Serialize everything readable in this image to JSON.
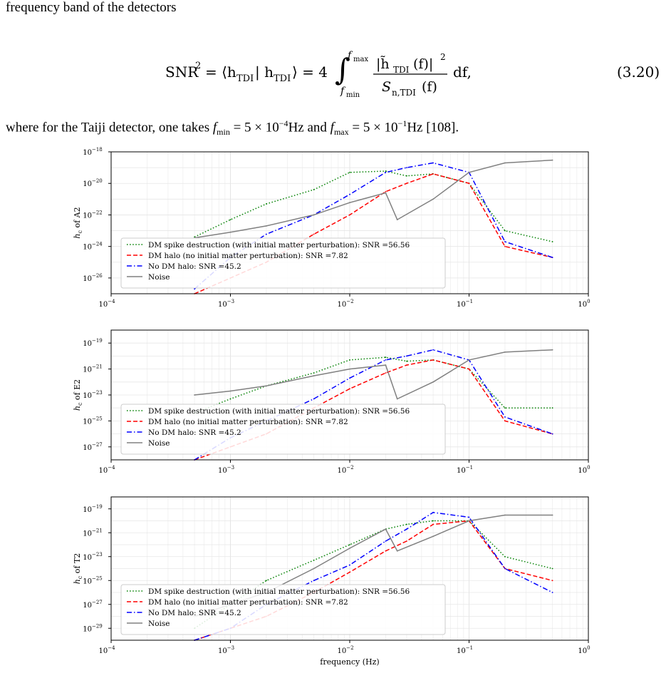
{
  "paper": {
    "intro_text": "frequency band of the detectors",
    "equation": {
      "lhs": "SNR",
      "lhs_sup": "2",
      "inner": "= ⟨h",
      "inner_sub": "TDI",
      "mid": " | h",
      "mid_sub": "TDI",
      "close": "⟩ = 4",
      "upper_limit": "f",
      "upper_limit_sub": "max",
      "lower_limit": "f",
      "lower_limit_sub": "min",
      "numerator": "|h̃",
      "numerator_sub": "TDI",
      "numerator_tail": "(f)|",
      "numerator_sup": "2",
      "denominator": "S",
      "denominator_sub": "n,TDI",
      "denominator_tail": "(f)",
      "differential": "df,",
      "number": "(3.20)"
    },
    "where_text": {
      "a": "where for the Taiji detector, one takes ",
      "fmin": "f",
      "fmin_sub": "min",
      "b": " = 5 × 10",
      "b_sup": "−4",
      "c": "Hz and ",
      "fmax": "f",
      "fmax_sub": "max",
      "d": " = 5 × 10",
      "d_sup": "−1",
      "e": "Hz [108]."
    }
  },
  "chart_data": [
    {
      "type": "line",
      "title": "",
      "xlabel": "",
      "ylabel": "h_c of A2",
      "ylabel_main": "h",
      "ylabel_sub": "c",
      "ylabel_tail": " of A2",
      "xscale": "log",
      "yscale": "log",
      "xlim": [
        0.0001,
        1
      ],
      "ylim": [
        1e-27,
        1e-18
      ],
      "x_ticks": [
        "10^-4",
        "10^-3",
        "10^-2",
        "10^-1",
        "10^0"
      ],
      "y_ticks": [
        "10^-26",
        "10^-24",
        "10^-22",
        "10^-20",
        "10^-18"
      ],
      "grid": true,
      "legend_position": "lower-left",
      "legend": [
        "DM spike destruction (with initial matter perturbation): SNR =56.56",
        "DM halo (no initial matter perturbation): SNR =7.82",
        "No DM halo: SNR =45.2",
        "Noise"
      ],
      "series": [
        {
          "name": "DM spike destruction (with initial matter perturbation): SNR =56.56",
          "color": "#008000",
          "style": "dotted",
          "x": [
            0.0005,
            0.001,
            0.002,
            0.005,
            0.01,
            0.02,
            0.03,
            0.05,
            0.1,
            0.2,
            0.5
          ],
          "y": [
            4e-24,
            5e-23,
            5e-22,
            4e-21,
            5e-20,
            6e-20,
            3e-20,
            4e-20,
            1e-20,
            1e-23,
            2e-24
          ]
        },
        {
          "name": "DM halo (no initial matter perturbation): SNR =7.82",
          "color": "#ff0000",
          "style": "dashed",
          "x": [
            0.0005,
            0.001,
            0.002,
            0.005,
            0.01,
            0.02,
            0.03,
            0.05,
            0.1,
            0.2,
            0.5
          ],
          "y": [
            1e-27,
            1e-26,
            1e-25,
            6e-24,
            1e-22,
            3e-21,
            1e-20,
            4e-20,
            1e-20,
            1e-24,
            2e-25
          ]
        },
        {
          "name": "No DM halo: SNR =45.2",
          "color": "#0000ff",
          "style": "dashdot",
          "x": [
            0.0005,
            0.001,
            0.002,
            0.005,
            0.01,
            0.02,
            0.03,
            0.05,
            0.1,
            0.2,
            0.5
          ],
          "y": [
            2e-27,
            2e-25,
            6e-24,
            1e-22,
            2e-21,
            5e-20,
            1e-19,
            2e-19,
            5e-20,
            2e-24,
            2e-25
          ]
        },
        {
          "name": "Noise",
          "color": "#808080",
          "style": "solid",
          "x": [
            0.0005,
            0.001,
            0.002,
            0.005,
            0.01,
            0.02,
            0.025,
            0.05,
            0.1,
            0.2,
            0.5
          ],
          "y": [
            3.5e-24,
            8e-24,
            2e-23,
            1e-22,
            6e-22,
            2.5e-21,
            5e-23,
            1e-21,
            5e-20,
            2e-19,
            3e-19
          ]
        }
      ]
    },
    {
      "type": "line",
      "title": "",
      "xlabel": "",
      "ylabel": "h_c of E2",
      "ylabel_main": "h",
      "ylabel_sub": "c",
      "ylabel_tail": " of E2",
      "xscale": "log",
      "yscale": "log",
      "xlim": [
        0.0001,
        1
      ],
      "ylim": [
        1e-28,
        1e-18
      ],
      "x_ticks": [
        "10^-4",
        "10^-3",
        "10^-2",
        "10^-1",
        "10^0"
      ],
      "y_ticks": [
        "10^-27",
        "10^-25",
        "10^-23",
        "10^-21",
        "10^-19"
      ],
      "grid": true,
      "legend_position": "lower-left",
      "legend": [
        "DM spike destruction (with initial matter perturbation): SNR =56.56",
        "DM halo (no initial matter perturbation): SNR =7.82",
        "No DM halo: SNR =45.2",
        "Noise"
      ],
      "series": [
        {
          "name": "DM spike destruction (with initial matter perturbation): SNR =56.56",
          "color": "#008000",
          "style": "dotted",
          "x": [
            0.0005,
            0.001,
            0.002,
            0.005,
            0.01,
            0.02,
            0.03,
            0.05,
            0.1,
            0.2,
            0.5
          ],
          "y": [
            4e-25,
            5e-24,
            5e-23,
            5e-22,
            5e-21,
            8e-21,
            4e-21,
            5e-21,
            1e-21,
            1e-24,
            1e-24
          ]
        },
        {
          "name": "DM halo (no initial matter perturbation): SNR =7.82",
          "color": "#ff0000",
          "style": "dashed",
          "x": [
            0.0005,
            0.001,
            0.002,
            0.005,
            0.01,
            0.02,
            0.03,
            0.05,
            0.1,
            0.2,
            0.5
          ],
          "y": [
            1e-28,
            1e-27,
            1e-26,
            1e-24,
            3e-23,
            5e-22,
            2e-21,
            5e-21,
            1e-21,
            1e-25,
            1e-26
          ]
        },
        {
          "name": "No DM halo: SNR =45.2",
          "color": "#0000ff",
          "style": "dashdot",
          "x": [
            0.0005,
            0.001,
            0.002,
            0.005,
            0.01,
            0.02,
            0.03,
            0.05,
            0.1,
            0.2,
            0.5
          ],
          "y": [
            1e-28,
            5e-27,
            1e-25,
            5e-24,
            2e-22,
            5e-21,
            1e-20,
            3e-20,
            5e-21,
            2e-25,
            1e-26
          ]
        },
        {
          "name": "Noise",
          "color": "#808080",
          "style": "solid",
          "x": [
            0.0005,
            0.001,
            0.002,
            0.005,
            0.01,
            0.02,
            0.025,
            0.05,
            0.1,
            0.2,
            0.5
          ],
          "y": [
            1e-23,
            2e-23,
            5e-23,
            3e-22,
            1e-21,
            2e-21,
            5e-24,
            1e-22,
            5e-21,
            2e-20,
            3e-20
          ]
        }
      ]
    },
    {
      "type": "line",
      "title": "",
      "xlabel": "frequency (Hz)",
      "ylabel": "h_c of T2",
      "ylabel_main": "h",
      "ylabel_sub": "c",
      "ylabel_tail": " of T2",
      "xscale": "log",
      "yscale": "log",
      "xlim": [
        0.0001,
        1
      ],
      "ylim": [
        1e-30,
        1e-18
      ],
      "x_ticks": [
        "10^-4",
        "10^-3",
        "10^-2",
        "10^-1",
        "10^0"
      ],
      "y_ticks": [
        "10^-29",
        "10^-27",
        "10^-25",
        "10^-23",
        "10^-21",
        "10^-19"
      ],
      "grid": true,
      "legend_position": "lower-left",
      "legend": [
        "DM spike destruction (with initial matter perturbation): SNR =56.56",
        "DM halo (no initial matter perturbation): SNR =7.82",
        "No DM halo: SNR =45.2",
        "Noise"
      ],
      "series": [
        {
          "name": "DM spike destruction (with initial matter perturbation): SNR =56.56",
          "color": "#008000",
          "style": "dotted",
          "x": [
            0.0005,
            0.001,
            0.002,
            0.005,
            0.01,
            0.02,
            0.03,
            0.05,
            0.1,
            0.2,
            0.5
          ],
          "y": [
            1e-29,
            1e-27,
            1e-25,
            5e-24,
            1e-22,
            2e-21,
            5e-21,
            1e-20,
            1e-20,
            1e-23,
            1e-24
          ]
        },
        {
          "name": "DM halo (no initial matter perturbation): SNR =7.82",
          "color": "#ff0000",
          "style": "dashed",
          "x": [
            0.0005,
            0.001,
            0.002,
            0.005,
            0.01,
            0.02,
            0.03,
            0.05,
            0.1,
            0.2,
            0.5
          ],
          "y": [
            1e-30,
            1e-29,
            1e-28,
            1e-26,
            5e-25,
            3e-23,
            2e-22,
            5e-21,
            1e-20,
            1e-24,
            1e-25
          ]
        },
        {
          "name": "No DM halo: SNR =45.2",
          "color": "#0000ff",
          "style": "dashdot",
          "x": [
            0.0005,
            0.001,
            0.002,
            0.005,
            0.01,
            0.02,
            0.03,
            0.05,
            0.1,
            0.2,
            0.5
          ],
          "y": [
            1e-30,
            1e-29,
            1e-27,
            1e-25,
            2e-24,
            2e-22,
            2e-21,
            5e-20,
            2e-20,
            1e-24,
            1e-26
          ]
        },
        {
          "name": "Noise",
          "color": "#808080",
          "style": "solid",
          "x": [
            0.0005,
            0.001,
            0.002,
            0.005,
            0.01,
            0.02,
            0.025,
            0.05,
            0.1,
            0.2,
            0.5
          ],
          "y": [
            1e-28,
            1e-27,
            1e-26,
            1e-24,
            5e-23,
            2e-21,
            3e-23,
            5e-22,
            1e-20,
            3e-20,
            3e-20
          ]
        }
      ]
    }
  ]
}
